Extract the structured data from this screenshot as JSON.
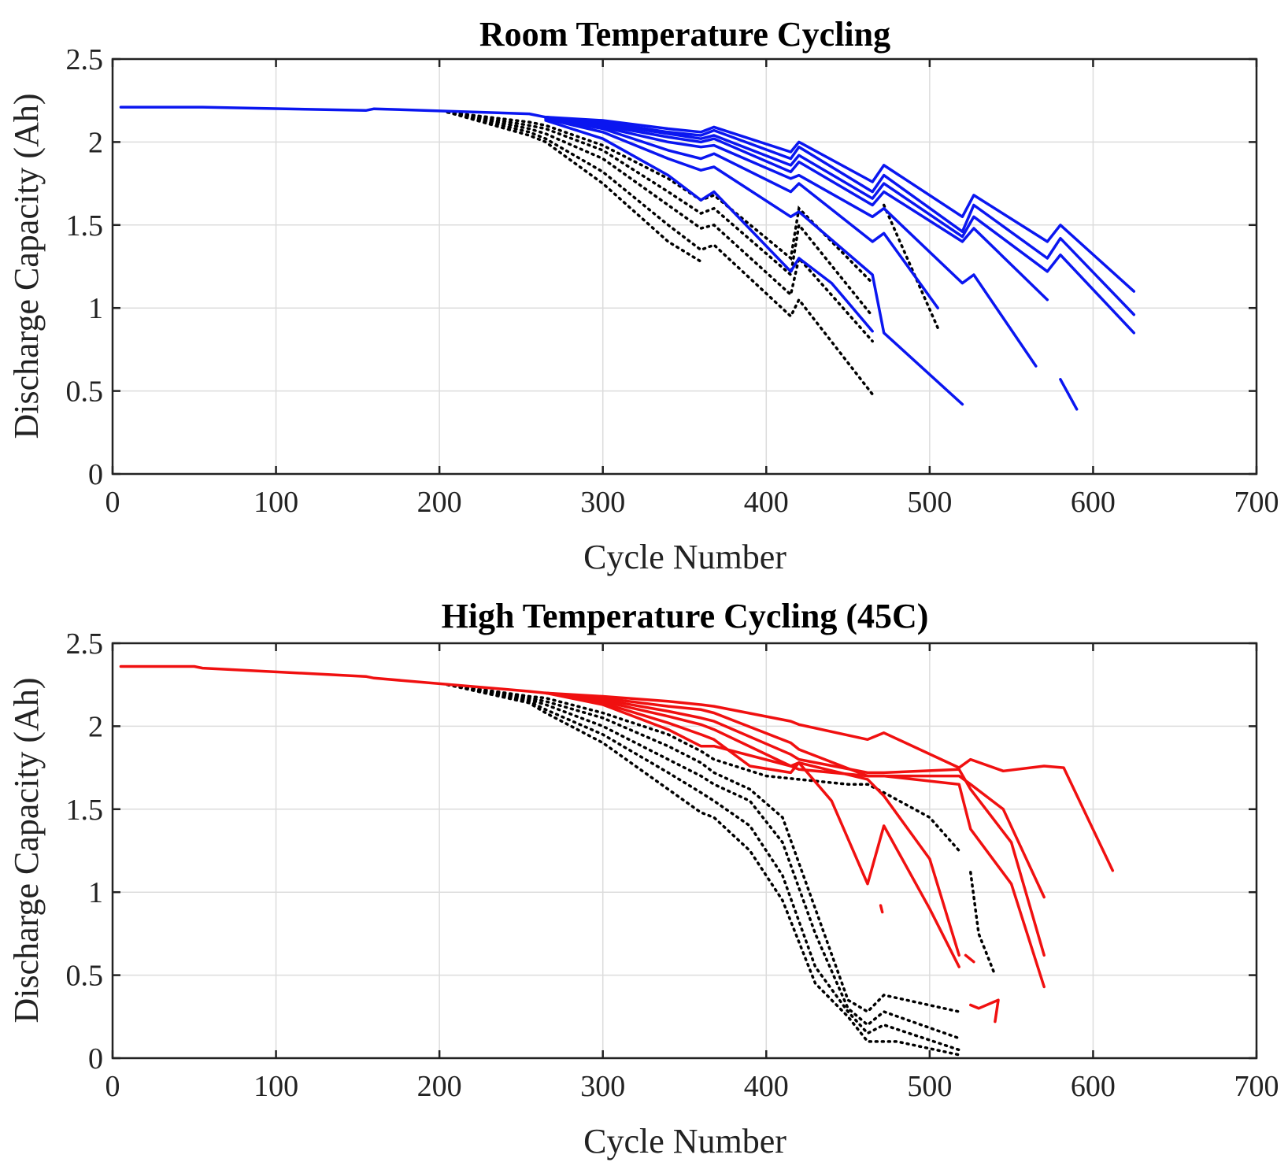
{
  "chart_data": [
    {
      "type": "line",
      "title": "Room Temperature Cycling",
      "xlabel": "Cycle Number",
      "ylabel": "Discharge Capacity (Ah)",
      "xlim": [
        0,
        700
      ],
      "ylim": [
        0,
        2.5
      ],
      "xticks": [
        "0",
        "100",
        "200",
        "300",
        "400",
        "500",
        "600",
        "700"
      ],
      "yticks": [
        "0",
        "0.5",
        "1",
        "1.5",
        "2",
        "2.5"
      ],
      "grid": true,
      "colors": {
        "solid": "#0a16f0",
        "dotted": "#000000"
      },
      "series": [
        {
          "style": "solid",
          "x": [
            5,
            50,
            55,
            155,
            160,
            255,
            265,
            300,
            340,
            360,
            368,
            415,
            420,
            465,
            472,
            520,
            527,
            572,
            580,
            625
          ],
          "y": [
            2.21,
            2.21,
            2.21,
            2.19,
            2.2,
            2.17,
            2.15,
            2.13,
            2.08,
            2.06,
            2.09,
            1.94,
            2.0,
            1.76,
            1.86,
            1.55,
            1.68,
            1.4,
            1.5,
            1.1
          ]
        },
        {
          "style": "solid",
          "x": [
            265,
            300,
            340,
            360,
            368,
            415,
            420,
            465,
            472,
            520,
            527,
            572,
            580,
            625
          ],
          "y": [
            2.15,
            2.12,
            2.06,
            2.04,
            2.07,
            1.9,
            1.97,
            1.7,
            1.8,
            1.46,
            1.62,
            1.3,
            1.42,
            0.96
          ]
        },
        {
          "style": "solid",
          "x": [
            265,
            300,
            340,
            360,
            368,
            415,
            420,
            465,
            472,
            520,
            527,
            572,
            580,
            625
          ],
          "y": [
            2.15,
            2.11,
            2.05,
            2.02,
            2.04,
            1.86,
            1.92,
            1.66,
            1.75,
            1.43,
            1.55,
            1.22,
            1.32,
            0.85
          ]
        },
        {
          "style": "solid",
          "x": [
            265,
            300,
            340,
            360,
            368,
            415,
            420,
            465,
            472,
            520,
            527,
            572
          ],
          "y": [
            2.15,
            2.1,
            2.03,
            2.0,
            2.02,
            1.82,
            1.88,
            1.62,
            1.7,
            1.4,
            1.48,
            1.05
          ]
        },
        {
          "style": "solid",
          "x": [
            265,
            300,
            340,
            360,
            368,
            415,
            420,
            465,
            472,
            520,
            527,
            565
          ],
          "y": [
            2.15,
            2.09,
            2.0,
            1.97,
            1.98,
            1.78,
            1.8,
            1.55,
            1.6,
            1.15,
            1.2,
            0.65
          ]
        },
        {
          "style": "solid",
          "x": [
            265,
            300,
            340,
            360,
            368,
            415,
            420,
            465,
            472,
            505
          ],
          "y": [
            2.14,
            2.08,
            1.95,
            1.9,
            1.93,
            1.7,
            1.75,
            1.4,
            1.45,
            1.0
          ]
        },
        {
          "style": "solid",
          "x": [
            265,
            300,
            340,
            360,
            368,
            415,
            420,
            465,
            472,
            520
          ],
          "y": [
            2.14,
            2.06,
            1.9,
            1.83,
            1.85,
            1.55,
            1.58,
            1.2,
            0.85,
            0.42
          ]
        },
        {
          "style": "solid",
          "x": [
            265,
            300,
            340,
            360,
            368,
            415,
            420,
            440,
            465
          ],
          "y": [
            2.13,
            2.02,
            1.8,
            1.65,
            1.7,
            1.22,
            1.3,
            1.15,
            0.86
          ]
        },
        {
          "style": "solid",
          "x": [
            580,
            590
          ],
          "y": [
            0.57,
            0.39
          ]
        },
        {
          "style": "dotted",
          "x": [
            205,
            255,
            265,
            300,
            340,
            360,
            368,
            415,
            420,
            465
          ],
          "y": [
            2.18,
            2.12,
            2.1,
            1.98,
            1.78,
            1.65,
            1.68,
            1.3,
            1.6,
            1.15
          ]
        },
        {
          "style": "dotted",
          "x": [
            205,
            255,
            265,
            300,
            340,
            360,
            368,
            415,
            420,
            465
          ],
          "y": [
            2.18,
            2.1,
            2.08,
            1.95,
            1.7,
            1.57,
            1.6,
            1.2,
            1.5,
            0.95
          ]
        },
        {
          "style": "dotted",
          "x": [
            205,
            255,
            265,
            300,
            340,
            360,
            368,
            415,
            420,
            465
          ],
          "y": [
            2.18,
            2.08,
            2.05,
            1.9,
            1.62,
            1.48,
            1.5,
            1.08,
            1.3,
            0.8
          ]
        },
        {
          "style": "dotted",
          "x": [
            205,
            255,
            265,
            300,
            340,
            360,
            368,
            415,
            420,
            465
          ],
          "y": [
            2.18,
            2.06,
            2.02,
            1.82,
            1.5,
            1.35,
            1.38,
            0.95,
            1.05,
            0.48
          ]
        },
        {
          "style": "dotted",
          "x": [
            205,
            255,
            265,
            300,
            340,
            360
          ],
          "y": [
            2.18,
            2.04,
            2.0,
            1.75,
            1.4,
            1.28
          ]
        },
        {
          "style": "dotted",
          "x": [
            472,
            505
          ],
          "y": [
            1.62,
            0.88
          ]
        }
      ]
    },
    {
      "type": "line",
      "title": "High Temperature Cycling (45C)",
      "xlabel": "Cycle Number",
      "ylabel": "Discharge Capacity (Ah)",
      "xlim": [
        0,
        700
      ],
      "ylim": [
        0,
        2.5
      ],
      "xticks": [
        "0",
        "100",
        "200",
        "300",
        "400",
        "500",
        "600",
        "700"
      ],
      "yticks": [
        "0",
        "0.5",
        "1",
        "1.5",
        "2",
        "2.5"
      ],
      "grid": true,
      "colors": {
        "solid": "#f01010",
        "dotted": "#000000"
      },
      "series": [
        {
          "style": "solid",
          "x": [
            5,
            50,
            55,
            155,
            160,
            255,
            265,
            300,
            340,
            360,
            368,
            415,
            420,
            462,
            472,
            518,
            525,
            545,
            570,
            582,
            612
          ],
          "y": [
            2.36,
            2.36,
            2.35,
            2.3,
            2.29,
            2.21,
            2.2,
            2.18,
            2.15,
            2.13,
            2.12,
            2.03,
            2.01,
            1.92,
            1.96,
            1.75,
            1.8,
            1.73,
            1.76,
            1.75,
            1.13
          ]
        },
        {
          "style": "solid",
          "x": [
            265,
            300,
            340,
            360,
            368,
            415,
            420,
            462,
            472,
            518,
            525,
            545,
            570
          ],
          "y": [
            2.2,
            2.17,
            2.12,
            2.1,
            2.08,
            1.9,
            1.86,
            1.7,
            1.7,
            1.7,
            1.65,
            1.5,
            0.97
          ]
        },
        {
          "style": "solid",
          "x": [
            265,
            300,
            340,
            360,
            368,
            415,
            420,
            462,
            472,
            518,
            525,
            550,
            570
          ],
          "y": [
            2.2,
            2.16,
            2.09,
            2.05,
            2.03,
            1.83,
            1.8,
            1.72,
            1.72,
            1.74,
            1.62,
            1.3,
            0.62
          ]
        },
        {
          "style": "solid",
          "x": [
            265,
            300,
            340,
            360,
            368,
            415,
            420,
            462,
            472,
            518,
            525,
            550,
            570
          ],
          "y": [
            2.2,
            2.15,
            2.06,
            2.01,
            1.98,
            1.76,
            1.74,
            1.7,
            1.7,
            1.65,
            1.38,
            1.05,
            0.43
          ]
        },
        {
          "style": "solid",
          "x": [
            265,
            300,
            340,
            360,
            368,
            390,
            415,
            420,
            462,
            472,
            500,
            518
          ],
          "y": [
            2.2,
            2.14,
            2.02,
            1.95,
            1.92,
            1.76,
            1.72,
            1.78,
            1.68,
            1.58,
            1.2,
            0.62
          ]
        },
        {
          "style": "solid",
          "x": [
            265,
            300,
            340,
            360,
            368,
            415,
            420,
            440,
            462,
            472,
            500,
            518
          ],
          "y": [
            2.2,
            2.13,
            1.98,
            1.88,
            1.88,
            1.76,
            1.78,
            1.55,
            1.05,
            1.4,
            0.9,
            0.55
          ]
        },
        {
          "style": "solid",
          "x": [
            470,
            471
          ],
          "y": [
            0.92,
            0.88
          ]
        },
        {
          "style": "solid",
          "x": [
            522,
            527
          ],
          "y": [
            0.62,
            0.58
          ]
        },
        {
          "style": "solid",
          "x": [
            525,
            530,
            542,
            540
          ],
          "y": [
            0.32,
            0.3,
            0.35,
            0.22
          ]
        },
        {
          "style": "dotted",
          "x": [
            205,
            255,
            265,
            300,
            340,
            360,
            368,
            400,
            420,
            450,
            462,
            472,
            500,
            518
          ],
          "y": [
            2.25,
            2.18,
            2.17,
            2.08,
            1.95,
            1.85,
            1.8,
            1.7,
            1.68,
            1.65,
            1.65,
            1.6,
            1.45,
            1.25
          ]
        },
        {
          "style": "dotted",
          "x": [
            205,
            255,
            265,
            300,
            340,
            360,
            368,
            390,
            410,
            430,
            450,
            462,
            472,
            518
          ],
          "y": [
            2.25,
            2.17,
            2.15,
            2.05,
            1.88,
            1.78,
            1.72,
            1.62,
            1.45,
            0.9,
            0.35,
            0.28,
            0.38,
            0.28
          ]
        },
        {
          "style": "dotted",
          "x": [
            205,
            255,
            265,
            300,
            340,
            360,
            368,
            390,
            410,
            430,
            450,
            462,
            472,
            518
          ],
          "y": [
            2.25,
            2.16,
            2.13,
            2.0,
            1.8,
            1.7,
            1.65,
            1.55,
            1.3,
            0.75,
            0.3,
            0.2,
            0.28,
            0.12
          ]
        },
        {
          "style": "dotted",
          "x": [
            205,
            255,
            265,
            300,
            340,
            360,
            368,
            390,
            410,
            430,
            450,
            462,
            472,
            518
          ],
          "y": [
            2.25,
            2.15,
            2.1,
            1.95,
            1.72,
            1.6,
            1.55,
            1.4,
            1.1,
            0.55,
            0.28,
            0.15,
            0.2,
            0.05
          ]
        },
        {
          "style": "dotted",
          "x": [
            205,
            255,
            265,
            300,
            340,
            360,
            368,
            390,
            410,
            430,
            450,
            462,
            480,
            518
          ],
          "y": [
            2.25,
            2.14,
            2.08,
            1.9,
            1.62,
            1.48,
            1.45,
            1.25,
            0.95,
            0.45,
            0.25,
            0.1,
            0.1,
            0.02
          ]
        },
        {
          "style": "dotted",
          "x": [
            525,
            530,
            540
          ],
          "y": [
            1.12,
            0.75,
            0.5
          ]
        }
      ]
    }
  ]
}
